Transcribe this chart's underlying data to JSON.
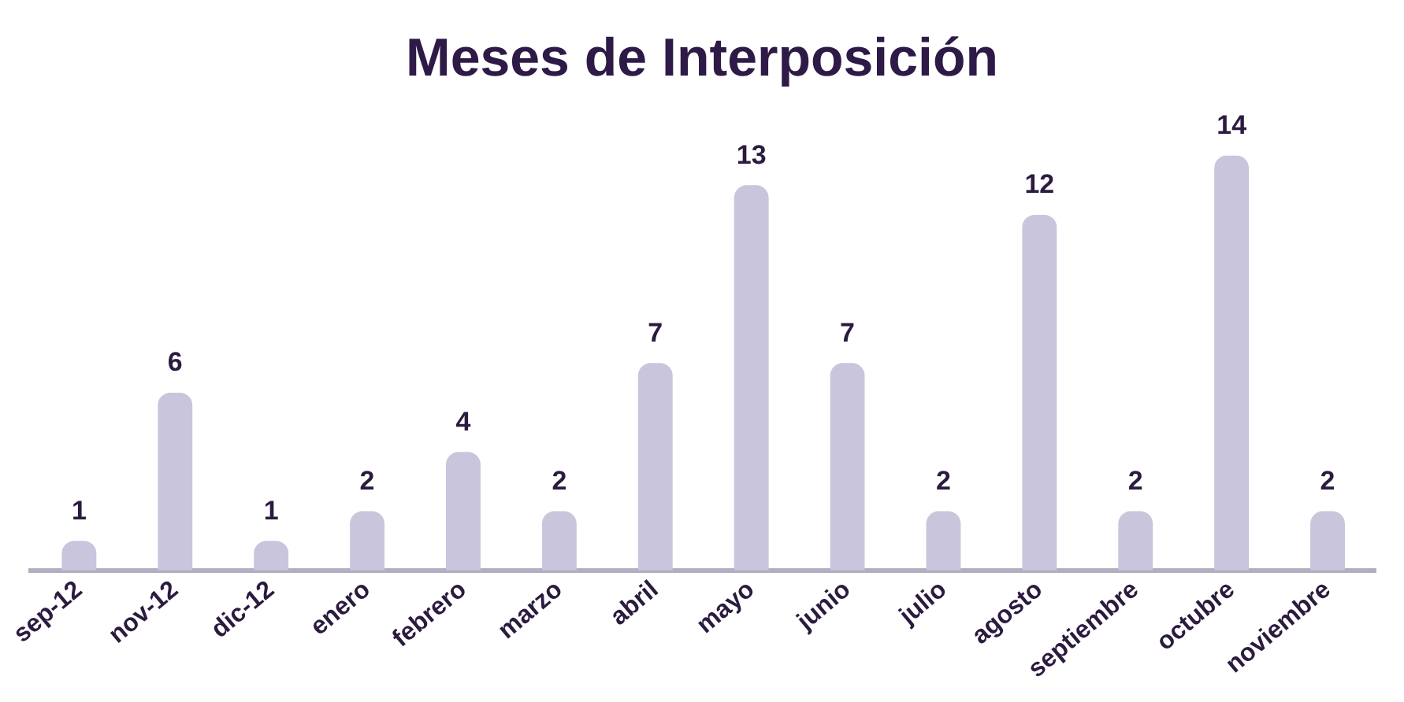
{
  "chart_data": {
    "type": "bar",
    "title": "Meses de Interposición",
    "categories": [
      "sep-12",
      "nov-12",
      "dic-12",
      "enero",
      "febrero",
      "marzo",
      "abril",
      "mayo",
      "junio",
      "julio",
      "agosto",
      "septiembre",
      "octubre",
      "noviembre"
    ],
    "values": [
      1,
      6,
      1,
      2,
      4,
      2,
      7,
      13,
      7,
      2,
      12,
      2,
      14,
      2
    ],
    "color": "#c9c5dd",
    "data_labels": true,
    "grid": false,
    "legend": false
  }
}
